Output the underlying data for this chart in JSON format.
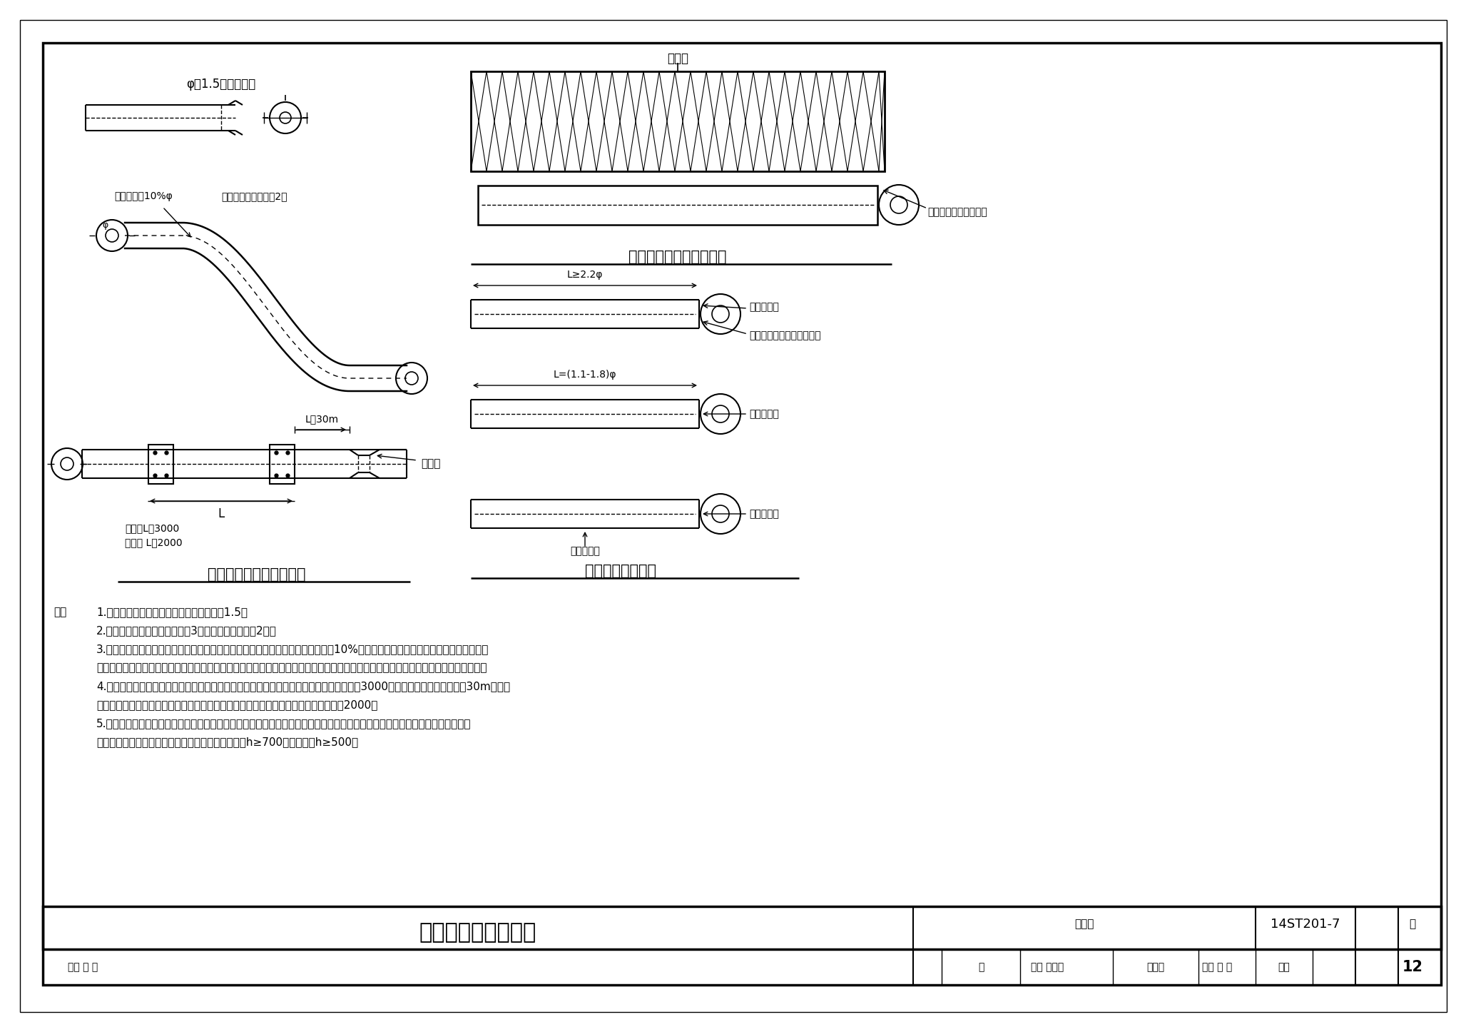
{
  "bg_color": "#ffffff",
  "title": "电缆穿电缆管敞设图",
  "figure_num": "14ST201-7",
  "page": "12",
  "left_diagram_title": "电缆穿电缆管敞设俧视图",
  "right_top_title": "电缆管埋地敞设正立面图",
  "right_bottom_title": "电缆管接头俧视图",
  "phi_label": "φ＞1.5倍线缆外径",
  "bend_label1": "弯扁程度＜10%φ",
  "bend_label2": "每根电缆管直角弯＜2个",
  "expansion_label": "伸缩节",
  "metal_label": "金属管L＜3000",
  "nonmetal_label": "非金属 L＜2000",
  "backfill_label": "回填土",
  "concrete_tube_label": "混凝土或玻璃管电缆管",
  "metal_cable_label": "金属电缆管",
  "connector_label": "连接套管或带螺纹的管接头",
  "hard_plastic_label": "硬质塑料管",
  "seal_label": "密封橡胶圈",
  "L_label": "L",
  "L30m_label": "L＞30m",
  "L22phi_label": "L≥2.2φ",
  "L118phi_label": "L=(1.1-1.8)φ",
  "phi_dim": "φ",
  "note_prefix": "注：",
  "note1": "1.　电缆管的内径与电缆外径之比不得小于1.5。",
  "note2": "2.　每根电缆管的弯头不应超过3个，直角弯不应超过2个。",
  "note3a": "3.　电缆管弯制后，不应有裂缝和显著的凹挡现象，其弯扁度不宜大于管子外径的10%；电缆管的弯曲半径不应小于所穿入电缆的最",
  "note3b": "　　小允许弯曲半径。管口应无毛刺和尖锐棱角。无防腐措施的金属电缆管应在外表涂防腐漆，镀锃管镀锃层剥落处也应涂涂以防腐漆。",
  "note4a": "4.　电缆管应安装牢固，电缆管支持点间的距离应符合设计规定，设计无规定时，不应超过3000；当塑料管的直线长度超过30m时，宜",
  "note4b": "　　加装伸缩节；非金属类电缆管在敞设时应采用预制的支架固定，支架间距不应超过2000。",
  "note5a": "5.　敞设混凝土类电缆时，其地基应坚实、平整，不应有沉陋。敞设低熔碗玻璃等抗压不抗拉的电缆管材时，应在其下部添加钉筋",
  "note5b": "　　混凝土垫层。混凝土或玻璃管电缆管回填土厚度h≥700，人行道下h≥500。",
  "tb_review": "审核 王 磊",
  "tb_sign1": "芝",
  "tb_check": "校对 蔡志刚",
  "tb_sign2": "蔡志刚",
  "tb_design": "设计 胡 珀",
  "tb_sign3": "胡珀"
}
